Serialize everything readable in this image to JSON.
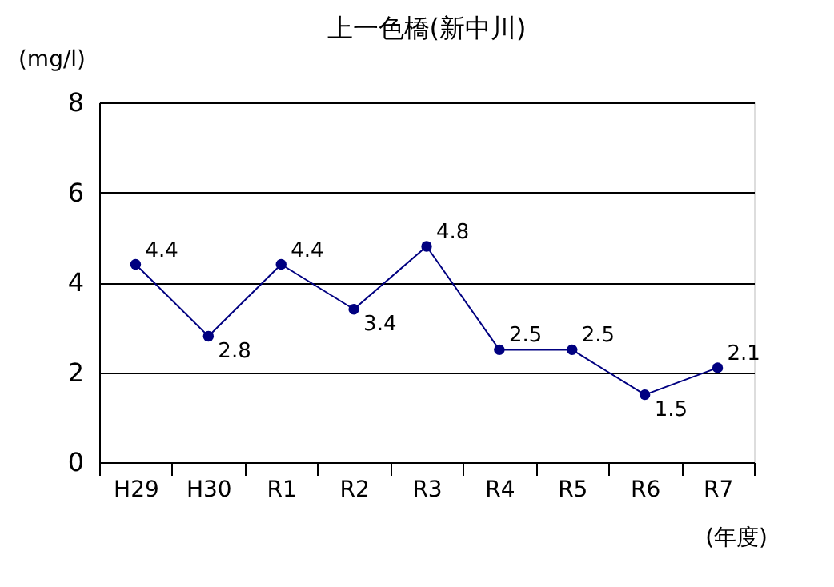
{
  "chart_data": {
    "type": "line",
    "title": "上一色橋(新中川)",
    "ylabel": "(mg/l)",
    "xlabel": "(年度)",
    "categories": [
      "H29",
      "H30",
      "R1",
      "R2",
      "R3",
      "R4",
      "R5",
      "R6",
      "R7"
    ],
    "series": [
      {
        "color": "#000080",
        "values": [
          4.4,
          2.8,
          4.4,
          3.4,
          4.8,
          2.5,
          2.5,
          1.5,
          2.1
        ]
      }
    ],
    "ylim": [
      0,
      8
    ],
    "yticks": [
      0,
      2,
      4,
      6,
      8
    ],
    "grid": "y",
    "marker": "circle",
    "line_style": "solid",
    "data_labels": true
  }
}
